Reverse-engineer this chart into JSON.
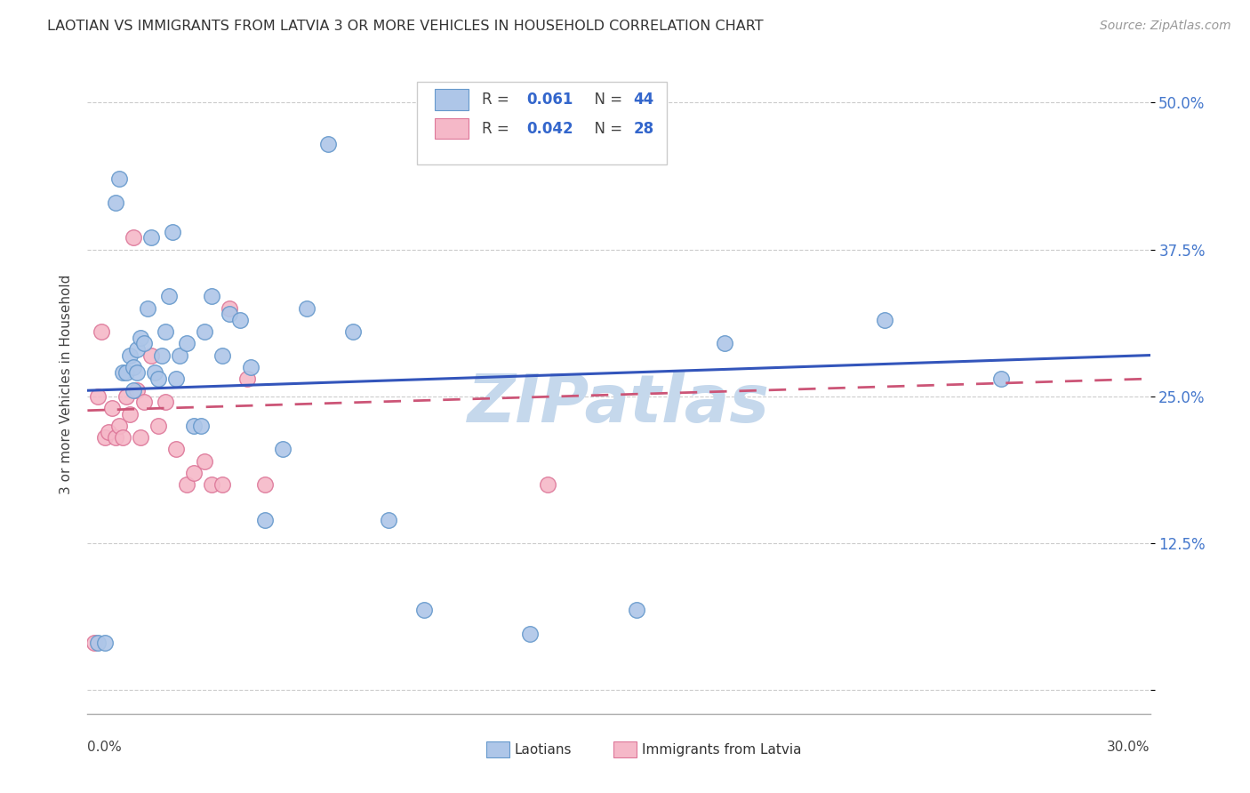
{
  "title": "LAOTIAN VS IMMIGRANTS FROM LATVIA 3 OR MORE VEHICLES IN HOUSEHOLD CORRELATION CHART",
  "source": "Source: ZipAtlas.com",
  "ylabel": "3 or more Vehicles in Household",
  "yticks": [
    0.0,
    0.125,
    0.25,
    0.375,
    0.5
  ],
  "ytick_labels": [
    "",
    "12.5%",
    "25.0%",
    "37.5%",
    "50.0%"
  ],
  "xmin": 0.0,
  "xmax": 0.3,
  "ymin": -0.02,
  "ymax": 0.54,
  "color_laotian_fill": "#aec6e8",
  "color_laotian_edge": "#6699cc",
  "color_latvia_fill": "#f5b8c8",
  "color_latvia_edge": "#dd7799",
  "color_line1": "#3355bb",
  "color_line2": "#cc5577",
  "color_watermark": "#c5d8ec",
  "scatter_laotian_x": [
    0.003,
    0.005,
    0.008,
    0.009,
    0.01,
    0.011,
    0.012,
    0.013,
    0.013,
    0.014,
    0.014,
    0.015,
    0.016,
    0.017,
    0.018,
    0.019,
    0.02,
    0.021,
    0.022,
    0.023,
    0.024,
    0.025,
    0.026,
    0.028,
    0.03,
    0.032,
    0.033,
    0.035,
    0.038,
    0.04,
    0.043,
    0.046,
    0.05,
    0.055,
    0.062,
    0.068,
    0.075,
    0.085,
    0.095,
    0.125,
    0.155,
    0.18,
    0.225,
    0.258
  ],
  "scatter_laotian_y": [
    0.04,
    0.04,
    0.415,
    0.435,
    0.27,
    0.27,
    0.285,
    0.275,
    0.255,
    0.29,
    0.27,
    0.3,
    0.295,
    0.325,
    0.385,
    0.27,
    0.265,
    0.285,
    0.305,
    0.335,
    0.39,
    0.265,
    0.285,
    0.295,
    0.225,
    0.225,
    0.305,
    0.335,
    0.285,
    0.32,
    0.315,
    0.275,
    0.145,
    0.205,
    0.325,
    0.465,
    0.305,
    0.145,
    0.068,
    0.048,
    0.068,
    0.295,
    0.315,
    0.265
  ],
  "scatter_latvia_x": [
    0.002,
    0.003,
    0.004,
    0.005,
    0.006,
    0.007,
    0.008,
    0.009,
    0.01,
    0.011,
    0.012,
    0.013,
    0.014,
    0.015,
    0.016,
    0.018,
    0.02,
    0.022,
    0.025,
    0.028,
    0.03,
    0.033,
    0.035,
    0.038,
    0.04,
    0.045,
    0.05,
    0.13
  ],
  "scatter_latvia_y": [
    0.04,
    0.25,
    0.305,
    0.215,
    0.22,
    0.24,
    0.215,
    0.225,
    0.215,
    0.25,
    0.235,
    0.385,
    0.255,
    0.215,
    0.245,
    0.285,
    0.225,
    0.245,
    0.205,
    0.175,
    0.185,
    0.195,
    0.175,
    0.175,
    0.325,
    0.265,
    0.175,
    0.175
  ],
  "line1_x0": 0.0,
  "line1_x1": 0.3,
  "line1_y0": 0.255,
  "line1_y1": 0.285,
  "line2_x0": 0.0,
  "line2_x1": 0.3,
  "line2_y0": 0.238,
  "line2_y1": 0.265
}
